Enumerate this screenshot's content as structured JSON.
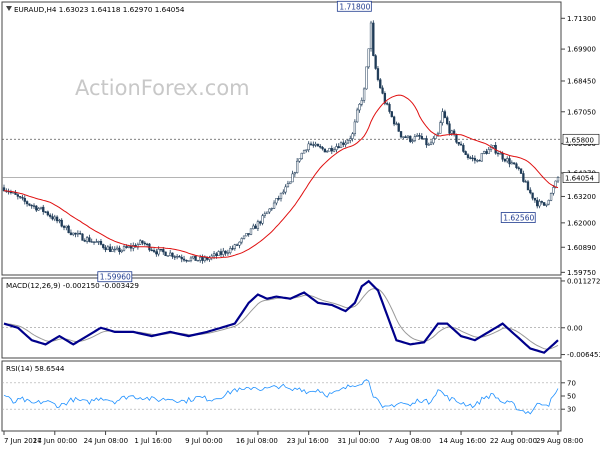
{
  "watermark": "ActionForex.com",
  "chart_data": [
    {
      "type": "candlestick",
      "title": "EURAUD,H4  1.63023 1.64118 1.62970 1.64054",
      "ylim": [
        1.5972,
        1.7195
      ],
      "yticks": [
        "1.71300",
        "1.69900",
        "1.68450",
        "1.67050",
        "1.65600",
        "1.64270",
        "1.63200",
        "1.62000",
        "1.60890",
        "1.59750"
      ],
      "current_price": 1.64054,
      "current_price_label": "1.64054",
      "resistance_level": 1.658,
      "resistance_label": "1.65800",
      "annotations": [
        {
          "label": "1.71800",
          "value": 1.718
        },
        {
          "label": "1.62560",
          "value": 1.6256
        },
        {
          "label": "1.59960",
          "value": 1.5996
        }
      ],
      "series": [
        {
          "name": "",
          "type": "moving-average"
        }
      ],
      "price_anchors": [
        [
          0,
          1.636
        ],
        [
          8,
          1.63
        ],
        [
          18,
          1.625
        ],
        [
          30,
          1.615
        ],
        [
          40,
          1.611
        ],
        [
          48,
          1.607
        ],
        [
          55,
          1.609
        ],
        [
          60,
          1.611
        ],
        [
          66,
          1.607
        ],
        [
          72,
          1.606
        ],
        [
          78,
          1.604
        ],
        [
          86,
          1.603
        ],
        [
          94,
          1.606
        ],
        [
          100,
          1.609
        ],
        [
          106,
          1.615
        ],
        [
          112,
          1.622
        ],
        [
          118,
          1.63
        ],
        [
          124,
          1.638
        ],
        [
          128,
          1.65
        ],
        [
          132,
          1.656
        ],
        [
          136,
          1.654
        ],
        [
          140,
          1.653
        ],
        [
          144,
          1.655
        ],
        [
          148,
          1.657
        ],
        [
          151,
          1.66
        ],
        [
          153,
          1.67
        ],
        [
          156,
          1.68
        ],
        [
          158,
          1.7
        ],
        [
          159,
          1.71
        ],
        [
          160,
          1.695
        ],
        [
          162,
          1.685
        ],
        [
          165,
          1.675
        ],
        [
          168,
          1.668
        ],
        [
          172,
          1.66
        ],
        [
          176,
          1.658
        ],
        [
          180,
          1.659
        ],
        [
          184,
          1.655
        ],
        [
          188,
          1.66
        ],
        [
          190,
          1.67
        ],
        [
          193,
          1.662
        ],
        [
          197,
          1.656
        ],
        [
          201,
          1.65
        ],
        [
          205,
          1.648
        ],
        [
          208,
          1.652
        ],
        [
          212,
          1.654
        ],
        [
          216,
          1.65
        ],
        [
          220,
          1.647
        ],
        [
          224,
          1.642
        ],
        [
          227,
          1.635
        ],
        [
          231,
          1.629
        ],
        [
          234,
          1.628
        ],
        [
          237,
          1.633
        ],
        [
          240,
          1.6405
        ]
      ]
    },
    {
      "type": "line",
      "title": "MACD(12,26,9) -0.002150 -0.003429",
      "ylim": [
        -0.0068,
        0.0115
      ],
      "yticks": [
        "0.011272",
        "0.00",
        "-0.006453"
      ],
      "zero_line": 0,
      "series": [
        {
          "name": "",
          "color": "#00008B",
          "kind": "macd"
        },
        {
          "name": "",
          "color": "#9a9a9a",
          "kind": "signal"
        }
      ],
      "macd_points": [
        [
          0,
          0.001
        ],
        [
          6,
          0.0
        ],
        [
          12,
          -0.003
        ],
        [
          18,
          -0.004
        ],
        [
          24,
          -0.002
        ],
        [
          30,
          -0.004
        ],
        [
          36,
          -0.002
        ],
        [
          42,
          0.0
        ],
        [
          48,
          -0.001
        ],
        [
          56,
          -0.001
        ],
        [
          64,
          -0.002
        ],
        [
          72,
          -0.001
        ],
        [
          80,
          -0.002
        ],
        [
          88,
          -0.001
        ],
        [
          94,
          0.0
        ],
        [
          100,
          0.001
        ],
        [
          106,
          0.006
        ],
        [
          110,
          0.008
        ],
        [
          114,
          0.007
        ],
        [
          118,
          0.0075
        ],
        [
          124,
          0.007
        ],
        [
          130,
          0.0085
        ],
        [
          136,
          0.006
        ],
        [
          142,
          0.0055
        ],
        [
          148,
          0.004
        ],
        [
          152,
          0.006
        ],
        [
          155,
          0.01
        ],
        [
          158,
          0.0112
        ],
        [
          162,
          0.009
        ],
        [
          166,
          0.003
        ],
        [
          170,
          -0.003
        ],
        [
          176,
          -0.004
        ],
        [
          182,
          -0.0035
        ],
        [
          188,
          0.001
        ],
        [
          192,
          0.001
        ],
        [
          198,
          -0.002
        ],
        [
          204,
          -0.003
        ],
        [
          210,
          -0.001
        ],
        [
          216,
          0.001
        ],
        [
          222,
          -0.002
        ],
        [
          228,
          -0.005
        ],
        [
          234,
          -0.006
        ],
        [
          240,
          -0.003
        ]
      ]
    },
    {
      "type": "line",
      "title": "RSI(14) 58.6544",
      "ylim": [
        0,
        100
      ],
      "yticks": [
        "70",
        "50",
        "30"
      ],
      "series": [
        {
          "name": "",
          "color": "#1e90ff"
        }
      ],
      "rsi_points": [
        [
          0,
          52
        ],
        [
          4,
          40
        ],
        [
          8,
          45
        ],
        [
          12,
          38
        ],
        [
          18,
          42
        ],
        [
          24,
          35
        ],
        [
          30,
          45
        ],
        [
          36,
          40
        ],
        [
          42,
          48
        ],
        [
          48,
          42
        ],
        [
          54,
          50
        ],
        [
          60,
          48
        ],
        [
          66,
          44
        ],
        [
          72,
          46
        ],
        [
          78,
          42
        ],
        [
          84,
          48
        ],
        [
          90,
          45
        ],
        [
          96,
          52
        ],
        [
          100,
          60
        ],
        [
          104,
          58
        ],
        [
          108,
          64
        ],
        [
          112,
          60
        ],
        [
          116,
          62
        ],
        [
          120,
          66
        ],
        [
          124,
          58
        ],
        [
          128,
          62
        ],
        [
          132,
          56
        ],
        [
          136,
          60
        ],
        [
          140,
          52
        ],
        [
          144,
          55
        ],
        [
          148,
          62
        ],
        [
          152,
          68
        ],
        [
          156,
          72
        ],
        [
          158,
          75
        ],
        [
          160,
          52
        ],
        [
          164,
          30
        ],
        [
          168,
          36
        ],
        [
          172,
          40
        ],
        [
          176,
          35
        ],
        [
          180,
          45
        ],
        [
          184,
          40
        ],
        [
          188,
          60
        ],
        [
          192,
          48
        ],
        [
          196,
          42
        ],
        [
          200,
          38
        ],
        [
          204,
          35
        ],
        [
          208,
          48
        ],
        [
          212,
          52
        ],
        [
          216,
          40
        ],
        [
          220,
          38
        ],
        [
          224,
          28
        ],
        [
          228,
          25
        ],
        [
          232,
          40
        ],
        [
          236,
          38
        ],
        [
          240,
          58.65
        ]
      ]
    }
  ],
  "x_axis": {
    "labels": [
      "7 Jun 2024",
      "17 Jun 00:00",
      "24 Jun 08:00",
      "1 Jul 16:00",
      "9 Jul 00:00",
      "16 Jul 08:00",
      "23 Jul 16:00",
      "31 Jul 00:00",
      "7 Aug 08:00",
      "14 Aug 16:00",
      "22 Aug 00:00",
      "29 Aug 08:00"
    ],
    "label_bars": [
      0,
      22,
      44,
      66,
      88,
      110,
      132,
      154,
      176,
      198,
      220,
      240
    ]
  }
}
